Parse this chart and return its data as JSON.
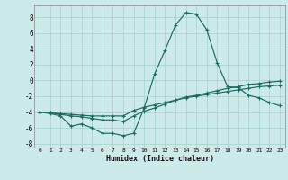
{
  "xlabel": "Humidex (Indice chaleur)",
  "background_color": "#cceae7",
  "grid_color": "#aad4d0",
  "line_color": "#1a6b60",
  "xlim": [
    -0.5,
    23.5
  ],
  "ylim": [
    -8.5,
    9.5
  ],
  "yticks": [
    -8,
    -6,
    -4,
    -2,
    0,
    2,
    4,
    6,
    8
  ],
  "xticks": [
    0,
    1,
    2,
    3,
    4,
    5,
    6,
    7,
    8,
    9,
    10,
    11,
    12,
    13,
    14,
    15,
    16,
    17,
    18,
    19,
    20,
    21,
    22,
    23
  ],
  "series": [
    {
      "x": [
        0,
        1,
        2,
        3,
        4,
        5,
        6,
        7,
        8,
        9,
        10,
        11,
        12,
        13,
        14,
        15,
        16,
        17,
        18,
        19,
        20,
        21,
        22,
        23
      ],
      "y": [
        -4.0,
        -4.2,
        -4.5,
        -5.8,
        -5.5,
        -6.0,
        -6.7,
        -6.7,
        -7.0,
        -6.7,
        -3.5,
        0.8,
        3.8,
        7.0,
        8.6,
        8.4,
        6.4,
        2.2,
        -0.8,
        -0.9,
        -1.9,
        -2.2,
        -2.8,
        -3.2
      ]
    },
    {
      "x": [
        0,
        1,
        2,
        3,
        4,
        5,
        6,
        7,
        8,
        9,
        10,
        11,
        12,
        13,
        14,
        15,
        16,
        17,
        18,
        19,
        20,
        21,
        22,
        23
      ],
      "y": [
        -4.0,
        -4.1,
        -4.2,
        -4.3,
        -4.4,
        -4.5,
        -4.5,
        -4.5,
        -4.5,
        -3.8,
        -3.4,
        -3.1,
        -2.8,
        -2.5,
        -2.2,
        -2.0,
        -1.8,
        -1.6,
        -1.4,
        -1.2,
        -1.0,
        -0.8,
        -0.7,
        -0.6
      ]
    },
    {
      "x": [
        0,
        1,
        2,
        3,
        4,
        5,
        6,
        7,
        8,
        9,
        10,
        11,
        12,
        13,
        14,
        15,
        16,
        17,
        18,
        19,
        20,
        21,
        22,
        23
      ],
      "y": [
        -4.0,
        -4.1,
        -4.3,
        -4.5,
        -4.6,
        -4.8,
        -5.0,
        -5.0,
        -5.2,
        -4.5,
        -3.9,
        -3.5,
        -3.0,
        -2.5,
        -2.1,
        -1.9,
        -1.6,
        -1.3,
        -1.0,
        -0.8,
        -0.5,
        -0.4,
        -0.2,
        -0.1
      ]
    }
  ]
}
